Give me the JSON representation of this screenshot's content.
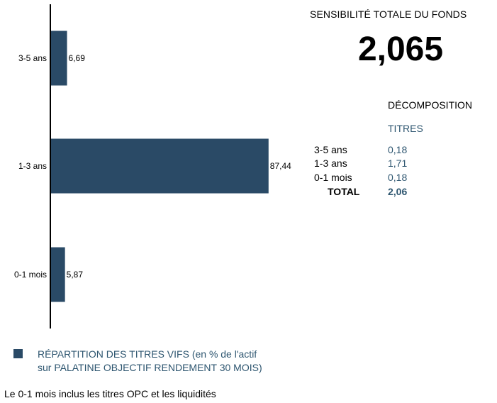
{
  "chart_data": {
    "type": "bar",
    "orientation": "horizontal",
    "categories": [
      "3-5 ans",
      "1-3 ans",
      "0-1 mois"
    ],
    "values": [
      6.69,
      87.44,
      5.87
    ],
    "value_labels": [
      "6,69",
      "87,44",
      "5,87"
    ],
    "xlim": [
      0,
      100
    ],
    "grid": false,
    "bar_color": "#2a4a66"
  },
  "sensibilite": {
    "title": "SENSIBILITÉ TOTALE DU FONDS",
    "value": "2,065"
  },
  "decomposition": {
    "title": "DÉCOMPOSITION",
    "column_header": "TITRES",
    "rows": [
      {
        "label": "3-5 ans",
        "value": "0,18"
      },
      {
        "label": "1-3 ans",
        "value": "1,71"
      },
      {
        "label": "0-1 mois",
        "value": "0,18"
      }
    ],
    "total": {
      "label": "TOTAL",
      "value": "2,06"
    }
  },
  "legend": {
    "line1": "RÉPARTITION DES TITRES VIFS  (en % de l'actif",
    "line2": "sur PALATINE OBJECTIF RENDEMENT 30 MOIS)"
  },
  "footnote": "Le 0-1 mois inclus les titres OPC et les liquidités"
}
